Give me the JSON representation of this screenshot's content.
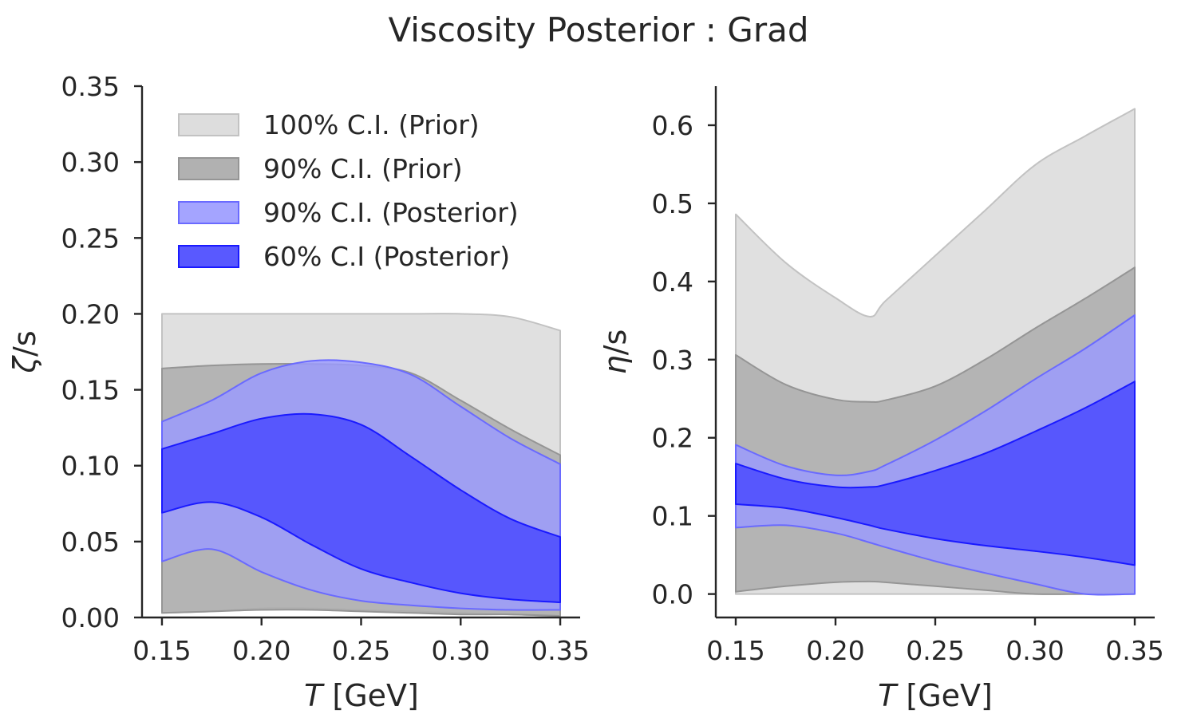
{
  "figure": {
    "title": "Viscosity Posterior : Grad"
  },
  "legend": {
    "items": [
      {
        "label": "100% C.I. (Prior)",
        "color": "#d9d9d9",
        "edge": "#c2c2c2"
      },
      {
        "label": "90% C.I. (Prior)",
        "color": "#a9a9a9",
        "edge": "#959595"
      },
      {
        "label": "90% C.I. (Posterior)",
        "color": "#9a9aff",
        "edge": "#6a6aff"
      },
      {
        "label": "60% C.I (Posterior)",
        "color": "#4747ff",
        "edge": "#1a1aff"
      }
    ]
  },
  "chart_data": [
    {
      "type": "area",
      "xlabel_var": "T",
      "xlabel_unit": " [GeV]",
      "ylabel_var": "ζ",
      "ylabel_unit": "/s",
      "xlim": [
        0.14,
        0.36
      ],
      "ylim": [
        0,
        0.35
      ],
      "xticks": [
        "0.15",
        "0.20",
        "0.25",
        "0.30",
        "0.35"
      ],
      "yticks": [
        "0.00",
        "0.05",
        "0.10",
        "0.15",
        "0.20",
        "0.25",
        "0.30",
        "0.35"
      ],
      "x": [
        0.15,
        0.175,
        0.2,
        0.225,
        0.25,
        0.275,
        0.3,
        0.325,
        0.35
      ],
      "series": [
        {
          "name": "100% C.I. (Prior)",
          "lower": [
            0.003,
            0.004,
            0.006,
            0.006,
            0.005,
            0.004,
            0.003,
            0.002,
            0.001
          ],
          "upper": [
            0.2,
            0.2,
            0.2,
            0.2,
            0.2,
            0.2,
            0.2,
            0.198,
            0.189
          ]
        },
        {
          "name": "90% C.I. (Prior)",
          "lower": [
            0.003,
            0.004,
            0.005,
            0.005,
            0.004,
            0.003,
            0.002,
            0.002,
            0.001
          ],
          "upper": [
            0.164,
            0.166,
            0.167,
            0.167,
            0.166,
            0.161,
            0.143,
            0.124,
            0.107
          ]
        },
        {
          "name": "90% C.I. (Posterior)",
          "lower": [
            0.037,
            0.045,
            0.03,
            0.018,
            0.011,
            0.008,
            0.006,
            0.005,
            0.005
          ],
          "upper": [
            0.129,
            0.143,
            0.161,
            0.169,
            0.168,
            0.16,
            0.139,
            0.118,
            0.101
          ]
        },
        {
          "name": "60% C.I (Posterior)",
          "lower": [
            0.069,
            0.076,
            0.066,
            0.048,
            0.032,
            0.023,
            0.016,
            0.012,
            0.01
          ],
          "upper": [
            0.111,
            0.121,
            0.131,
            0.134,
            0.127,
            0.106,
            0.084,
            0.065,
            0.053
          ]
        }
      ]
    },
    {
      "type": "area",
      "xlabel_var": "T",
      "xlabel_unit": " [GeV]",
      "ylabel_var": "η",
      "ylabel_unit": "/s",
      "xlim": [
        0.14,
        0.36
      ],
      "ylim": [
        -0.03,
        0.65
      ],
      "xticks": [
        "0.15",
        "0.20",
        "0.25",
        "0.30",
        "0.35"
      ],
      "yticks": [
        "0.0",
        "0.1",
        "0.2",
        "0.3",
        "0.4",
        "0.5",
        "0.6"
      ],
      "x": [
        0.15,
        0.175,
        0.2,
        0.217,
        0.225,
        0.25,
        0.275,
        0.3,
        0.325,
        0.35
      ],
      "series": [
        {
          "name": "100% C.I. (Prior)",
          "lower": [
            0.0,
            0.0,
            0.0,
            0.0,
            0.0,
            0.0,
            0.0,
            0.0,
            0.0,
            0.0
          ],
          "upper": [
            0.486,
            0.424,
            0.379,
            0.355,
            0.375,
            0.433,
            0.491,
            0.549,
            0.586,
            0.621
          ]
        },
        {
          "name": "90% C.I. (Prior)",
          "lower": [
            0.003,
            0.01,
            0.015,
            0.016,
            0.015,
            0.01,
            0.005,
            0.0,
            0.0,
            0.0
          ],
          "upper": [
            0.306,
            0.268,
            0.249,
            0.246,
            0.248,
            0.266,
            0.3,
            0.34,
            0.378,
            0.418
          ]
        },
        {
          "name": "90% C.I. (Posterior)",
          "lower": [
            0.085,
            0.088,
            0.078,
            0.066,
            0.06,
            0.042,
            0.027,
            0.013,
            0.0,
            0.0
          ],
          "upper": [
            0.191,
            0.164,
            0.152,
            0.157,
            0.165,
            0.197,
            0.234,
            0.275,
            0.314,
            0.357
          ]
        },
        {
          "name": "60% C.I (Posterior)",
          "lower": [
            0.115,
            0.11,
            0.098,
            0.088,
            0.083,
            0.071,
            0.062,
            0.055,
            0.047,
            0.037
          ],
          "upper": [
            0.167,
            0.147,
            0.137,
            0.137,
            0.14,
            0.158,
            0.18,
            0.208,
            0.238,
            0.272
          ]
        }
      ]
    }
  ]
}
